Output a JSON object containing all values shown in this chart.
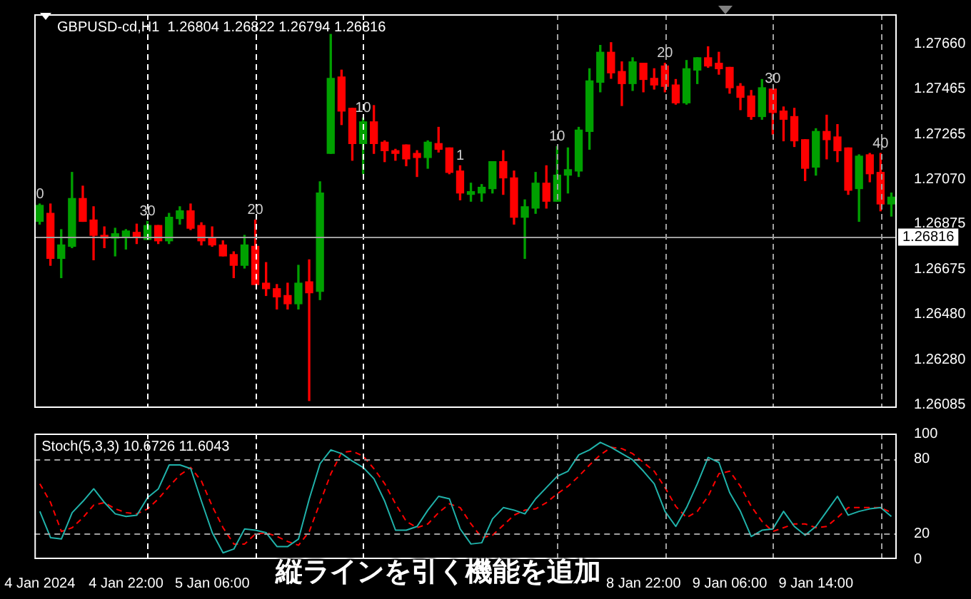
{
  "chart_data": [
    {
      "type": "candlestick",
      "title": "GBPUSD-cd,H1  1.26804 1.26822 1.26794 1.26816",
      "ohlc": [
        [
          1.26885,
          1.26961,
          1.26873,
          1.26955
        ],
        [
          1.2692,
          1.26961,
          1.26693,
          1.26723
        ],
        [
          1.26723,
          1.26849,
          1.26639,
          1.26782
        ],
        [
          1.26776,
          1.27099,
          1.2677,
          1.26985
        ],
        [
          1.26985,
          1.27039,
          1.26885,
          1.26885
        ],
        [
          1.26891,
          1.26949,
          1.26717,
          1.26824
        ],
        [
          1.26824,
          1.26861,
          1.2677,
          1.26812
        ],
        [
          1.26812,
          1.26855,
          1.26734,
          1.26831
        ],
        [
          1.26818,
          1.26849,
          1.26764,
          1.26843
        ],
        [
          1.26837,
          1.26873,
          1.26788,
          1.26818
        ],
        [
          1.26806,
          1.26885,
          1.26806,
          1.26867
        ],
        [
          1.26867,
          1.26867,
          1.26788,
          1.268
        ],
        [
          1.268,
          1.2692,
          1.26788,
          1.26903
        ],
        [
          1.26897,
          1.26949,
          1.26873,
          1.26931
        ],
        [
          1.26931,
          1.26961,
          1.26849,
          1.26855
        ],
        [
          1.26867,
          1.26879,
          1.26782,
          1.268
        ],
        [
          1.26812,
          1.26861,
          1.26776,
          1.26782
        ],
        [
          1.26782,
          1.268,
          1.26734,
          1.26734
        ],
        [
          1.2674,
          1.26752,
          1.26639,
          1.26693
        ],
        [
          1.26693,
          1.26824,
          1.26681,
          1.26782
        ],
        [
          1.26776,
          1.26891,
          1.26609,
          1.26609
        ],
        [
          1.26615,
          1.26705,
          1.26561,
          1.26591
        ],
        [
          1.26591,
          1.26609,
          1.26502,
          1.26555
        ],
        [
          1.26561,
          1.26615,
          1.26502,
          1.26525
        ],
        [
          1.26525,
          1.26693,
          1.26502,
          1.26615
        ],
        [
          1.26621,
          1.26717,
          1.26102,
          1.26573
        ],
        [
          1.26579,
          1.27058,
          1.26543,
          1.27009
        ],
        [
          1.27182,
          1.27702,
          1.27182,
          1.2751
        ],
        [
          1.27516,
          1.27546,
          1.27308,
          1.27367
        ],
        [
          1.27379,
          1.27379,
          1.27152,
          1.27225
        ],
        [
          1.27225,
          1.27337,
          1.27093,
          1.2732
        ],
        [
          1.2732,
          1.27391,
          1.27182,
          1.27225
        ],
        [
          1.27231,
          1.27237,
          1.27146,
          1.27194
        ],
        [
          1.27194,
          1.272,
          1.27152,
          1.27182
        ],
        [
          1.27219,
          1.27219,
          1.27128,
          1.27158
        ],
        [
          1.27182,
          1.27194,
          1.27081,
          1.27164
        ],
        [
          1.27164,
          1.27237,
          1.27117,
          1.27231
        ],
        [
          1.27225,
          1.27296,
          1.27188,
          1.272
        ],
        [
          1.27206,
          1.27206,
          1.27093,
          1.27099
        ],
        [
          1.27105,
          1.27128,
          1.26979,
          1.27009
        ],
        [
          1.27003,
          1.27052,
          1.26973,
          1.27015
        ],
        [
          1.27009,
          1.27046,
          1.26973,
          1.27034
        ],
        [
          1.27028,
          1.27146,
          1.27009,
          1.27146
        ],
        [
          1.27146,
          1.27194,
          1.27003,
          1.27075
        ],
        [
          1.27075,
          1.27105,
          1.26873,
          1.26903
        ],
        [
          1.26903,
          1.26979,
          1.26723,
          1.26949
        ],
        [
          1.26943,
          1.27099,
          1.2692,
          1.27052
        ],
        [
          1.27052,
          1.27128,
          1.26943,
          1.26973
        ],
        [
          1.26973,
          1.27212,
          1.26973,
          1.27087
        ],
        [
          1.27087,
          1.27206,
          1.27009,
          1.27111
        ],
        [
          1.27105,
          1.27296,
          1.27081,
          1.27284
        ],
        [
          1.27278,
          1.27552,
          1.272,
          1.27499
        ],
        [
          1.27493,
          1.27654,
          1.27451,
          1.27624
        ],
        [
          1.27624,
          1.27666,
          1.2751,
          1.27534
        ],
        [
          1.2754,
          1.27582,
          1.27391,
          1.27487
        ],
        [
          1.27487,
          1.276,
          1.27457,
          1.27582
        ],
        [
          1.27576,
          1.27576,
          1.27451,
          1.27505
        ],
        [
          1.2751,
          1.27552,
          1.27463,
          1.27481
        ],
        [
          1.27564,
          1.27576,
          1.27451,
          1.27475
        ],
        [
          1.27481,
          1.27505,
          1.27397,
          1.27403
        ],
        [
          1.27403,
          1.27588,
          1.27397,
          1.27552
        ],
        [
          1.27546,
          1.276,
          1.27487,
          1.276
        ],
        [
          1.276,
          1.27648,
          1.27558,
          1.27564
        ],
        [
          1.27576,
          1.27624,
          1.27528,
          1.27552
        ],
        [
          1.27558,
          1.27558,
          1.27445,
          1.27469
        ],
        [
          1.27475,
          1.27487,
          1.27373,
          1.27427
        ],
        [
          1.27433,
          1.27457,
          1.27331,
          1.27343
        ],
        [
          1.27343,
          1.27505,
          1.27331,
          1.27469
        ],
        [
          1.27463,
          1.27463,
          1.27266,
          1.27361
        ],
        [
          1.27367,
          1.27385,
          1.27237,
          1.27331
        ],
        [
          1.27343,
          1.27379,
          1.27212,
          1.27237
        ],
        [
          1.27242,
          1.27242,
          1.27063,
          1.27117
        ],
        [
          1.27122,
          1.2729,
          1.27087,
          1.27278
        ],
        [
          1.27278,
          1.27349,
          1.27158,
          1.27242
        ],
        [
          1.27254,
          1.27308,
          1.27146,
          1.27194
        ],
        [
          1.27206,
          1.27206,
          1.27003,
          1.27021
        ],
        [
          1.27028,
          1.27176,
          1.26885,
          1.2717
        ],
        [
          1.27176,
          1.27182,
          1.27058,
          1.27093
        ],
        [
          1.27099,
          1.27182,
          1.26931,
          1.26961
        ],
        [
          1.26961,
          1.27009,
          1.26908,
          1.26991
        ]
      ],
      "colors": [
        "#00a000",
        "#ff0000",
        "#00a000",
        "#00a000",
        "#ff0000",
        "#ff0000",
        "#ff0000",
        "#00a000",
        "#00a000",
        "#ff0000",
        "#00a000",
        "#ff0000",
        "#00a000",
        "#00a000",
        "#ff0000",
        "#ff0000",
        "#ff0000",
        "#ff0000",
        "#ff0000",
        "#00a000",
        "#ff0000",
        "#ff0000",
        "#ff0000",
        "#ff0000",
        "#00a000",
        "#ff0000",
        "#00a000",
        "#00a000",
        "#ff0000",
        "#ff0000",
        "#00a000",
        "#ff0000",
        "#ff0000",
        "#ff0000",
        "#ff0000",
        "#ff0000",
        "#00a000",
        "#ff0000",
        "#ff0000",
        "#ff0000",
        "#00a000",
        "#00a000",
        "#00a000",
        "#ff0000",
        "#ff0000",
        "#00a000",
        "#00a000",
        "#ff0000",
        "#00a000",
        "#00a000",
        "#00a000",
        "#00a000",
        "#00a000",
        "#ff0000",
        "#ff0000",
        "#00a000",
        "#ff0000",
        "#ff0000",
        "#ff0000",
        "#ff0000",
        "#00a000",
        "#00a000",
        "#ff0000",
        "#ff0000",
        "#ff0000",
        "#ff0000",
        "#ff0000",
        "#00a000",
        "#ff0000",
        "#ff0000",
        "#ff0000",
        "#ff0000",
        "#00a000",
        "#ff0000",
        "#ff0000",
        "#ff0000",
        "#00a000",
        "#ff0000",
        "#ff0000",
        "#00a000"
      ],
      "ylim": [
        1.2607,
        1.2779
      ],
      "yticks": [
        {
          "value": 1.2766,
          "label": "1.27660"
        },
        1.27465,
        1.27265,
        {
          "value": 1.2707,
          "label": "1.27070"
        },
        1.26875,
        1.26675,
        {
          "value": 1.2648,
          "label": "1.26480"
        },
        {
          "value": 1.2628,
          "label": "1.26280"
        },
        1.26085
      ],
      "tick_labels": "y",
      "grid": "x",
      "ref_lines": [
        {
          "axis": "y",
          "value": 1.26816,
          "label": "1.26816",
          "color": "#a0a0a0",
          "line_style": "solid"
        }
      ],
      "annotations": [
        "0",
        "30",
        "20",
        "10",
        "1",
        "10",
        "20",
        "30",
        "40"
      ]
    },
    {
      "type": "line",
      "title": "Stoch(5,3,3) 10.6726 11.6043",
      "categories": [
        "4 Jan 2024",
        null,
        null,
        null,
        null,
        null,
        null,
        null,
        "4 Jan 22:00",
        null,
        null,
        null,
        null,
        null,
        null,
        null,
        "5 Jan 06:00",
        null,
        null,
        null,
        null,
        null,
        null,
        null,
        null,
        null,
        null,
        null,
        null,
        null,
        null,
        null,
        null,
        null,
        null,
        null,
        null,
        null,
        null,
        null,
        null,
        null,
        null,
        null,
        null,
        null,
        null,
        null,
        null,
        null,
        null,
        null,
        null,
        null,
        null,
        null,
        "8 Jan 22:00",
        null,
        null,
        null,
        null,
        null,
        null,
        null,
        "9 Jan 06:00",
        null,
        null,
        null,
        null,
        null,
        null,
        null,
        "9 Jan 14:00",
        null,
        null,
        null,
        null,
        null,
        null,
        null
      ],
      "series": [
        {
          "color": "#20b2aa",
          "line_style": "solid",
          "values": [
            38,
            17,
            16,
            37,
            46,
            56,
            45,
            36,
            34,
            35,
            49,
            56,
            75,
            75,
            72,
            46,
            21,
            5,
            8,
            24,
            23,
            21,
            10,
            10,
            16,
            48,
            76,
            87,
            84,
            78,
            73,
            64,
            46,
            23,
            23,
            26,
            39,
            50,
            48,
            24,
            12,
            13,
            32,
            41,
            39,
            36,
            48,
            57,
            66,
            70,
            83,
            87,
            93,
            89,
            84,
            79,
            70,
            60,
            38,
            26,
            41,
            60,
            81,
            77,
            53,
            38,
            18,
            23,
            24,
            38,
            26,
            19,
            26,
            38,
            50,
            35,
            38,
            40,
            41,
            34
          ]
        },
        {
          "color": "#ff0000",
          "line_style": "dashed",
          "values": [
            60,
            45,
            22,
            25,
            33,
            43,
            45,
            40,
            37,
            36,
            40,
            48,
            58,
            67,
            73,
            62,
            42,
            25,
            12,
            12,
            20,
            21,
            18,
            14,
            11,
            22,
            45,
            68,
            85,
            86,
            82,
            72,
            60,
            44,
            30,
            25,
            28,
            37,
            44,
            41,
            28,
            17,
            19,
            27,
            35,
            39,
            40,
            45,
            52,
            58,
            66,
            75,
            83,
            89,
            88,
            84,
            77,
            70,
            57,
            42,
            33,
            38,
            50,
            68,
            70,
            58,
            42,
            30,
            22,
            25,
            28,
            28,
            25,
            26,
            33,
            41,
            41,
            41,
            41,
            37
          ]
        }
      ],
      "ylim": [
        0,
        100
      ],
      "yticks": [
        0,
        20,
        80,
        100
      ],
      "grid": "x",
      "ref_lines": [
        {
          "axis": "y",
          "value": 80,
          "color": "#a0a0a0",
          "line_style": "dashed"
        },
        {
          "axis": "y",
          "value": 20,
          "color": "#a0a0a0",
          "line_style": "dashed"
        }
      ],
      "annotations": [
        "縦ラインを引く機能を追加"
      ]
    }
  ]
}
